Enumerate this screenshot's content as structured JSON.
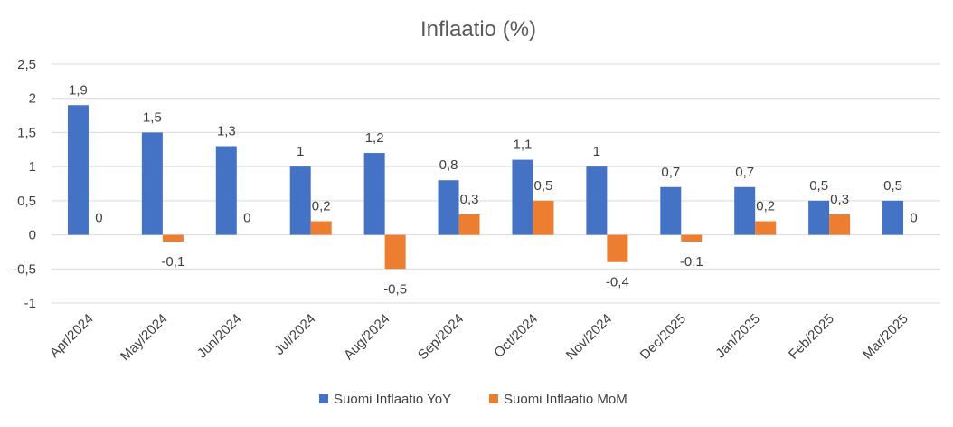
{
  "chart_data": {
    "type": "bar",
    "title": "Inflaatio (%)",
    "xlabel": "",
    "ylabel": "",
    "categories": [
      "Apr/2024",
      "May/2024",
      "Jun/2024",
      "Jul/2024",
      "Aug/2024",
      "Sep/2024",
      "Oct/2024",
      "Nov/2024",
      "Dec/2025",
      "Jan/2025",
      "Feb/2025",
      "Mar/2025"
    ],
    "series": [
      {
        "name": "Suomi Inflaatio YoY",
        "color": "#4472c4",
        "values": [
          1.9,
          1.5,
          1.3,
          1,
          1.2,
          0.8,
          1.1,
          1,
          0.7,
          0.7,
          0.5,
          0.5
        ],
        "labels": [
          "1,9",
          "1,5",
          "1,3",
          "1",
          "1,2",
          "0,8",
          "1,1",
          "1",
          "0,7",
          "0,7",
          "0,5",
          "0,5"
        ]
      },
      {
        "name": "Suomi Inflaatio MoM",
        "color": "#ed7d31",
        "values": [
          0,
          -0.1,
          0,
          0.2,
          -0.5,
          0.3,
          0.5,
          -0.4,
          -0.1,
          0.2,
          0.3,
          0
        ],
        "labels": [
          "0",
          "-0,1",
          "0",
          "0,2",
          "-0,5",
          "0,3",
          "0,5",
          "-0,4",
          "-0,1",
          "0,2",
          "0,3",
          "0"
        ]
      }
    ],
    "ylim": [
      -1,
      2.5
    ],
    "yticks": [
      2.5,
      2,
      1.5,
      1,
      0.5,
      0,
      -0.5,
      -1
    ],
    "ytick_labels": [
      "2,5",
      "2",
      "1,5",
      "1",
      "0,5",
      "0",
      "-0,5",
      "-1"
    ],
    "grid": true,
    "legend_position": "bottom"
  }
}
